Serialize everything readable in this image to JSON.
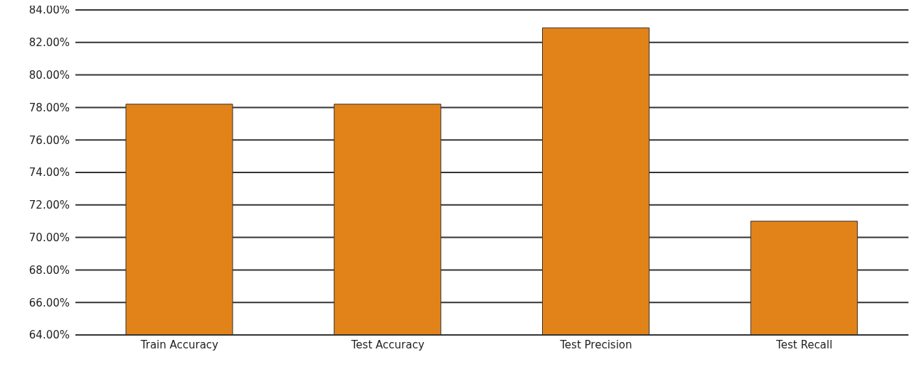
{
  "chart_data": {
    "type": "bar",
    "categories": [
      "Train Accuracy",
      "Test Accuracy",
      "Test Precision",
      "Test Recall"
    ],
    "values": [
      78.2,
      78.2,
      82.9,
      71.0
    ],
    "color": "#e2831a",
    "ylim": [
      64,
      84
    ],
    "yticks": [
      {
        "value": 64,
        "label": "64.00%"
      },
      {
        "value": 66,
        "label": "66.00%"
      },
      {
        "value": 68,
        "label": "68.00%"
      },
      {
        "value": 70,
        "label": "70.00%"
      },
      {
        "value": 72,
        "label": "72.00%"
      },
      {
        "value": 74,
        "label": "74.00%"
      },
      {
        "value": 76,
        "label": "76.00%"
      },
      {
        "value": 78,
        "label": "78.00%"
      },
      {
        "value": 80,
        "label": "80.00%"
      },
      {
        "value": 82,
        "label": "82.00%"
      },
      {
        "value": 84,
        "label": "84.00%"
      }
    ],
    "grid": "y"
  }
}
